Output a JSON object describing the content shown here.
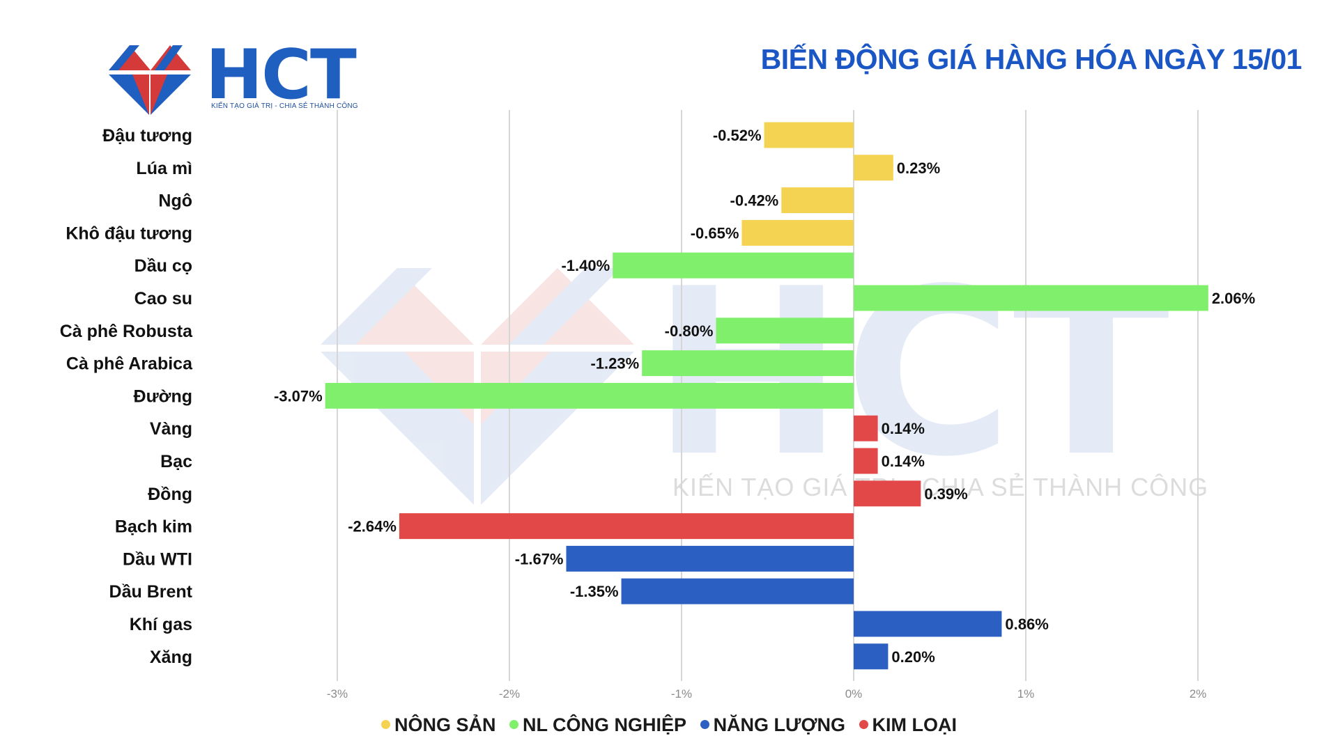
{
  "header": {
    "logo_text": "HCT",
    "logo_tagline": "KIẾN TẠO GIÁ TRỊ - CHIA SẺ THÀNH CÔNG",
    "title": "BIẾN ĐỘNG GIÁ HÀNG HÓA NGÀY 15/01"
  },
  "watermark": {
    "text": "HCT",
    "tagline": "KIẾN TẠO GIÁ TRỊ - CHIA SẺ THÀNH CÔNG"
  },
  "legend": [
    {
      "name": "NÔNG SẢN",
      "color": "#f5d352"
    },
    {
      "name": "NL CÔNG NGHIỆP",
      "color": "#80f06c"
    },
    {
      "name": "NĂNG LƯỢNG",
      "color": "#2b60c2"
    },
    {
      "name": "KIM LOẠI",
      "color": "#e34848"
    }
  ],
  "chart_data": {
    "type": "bar",
    "orientation": "horizontal",
    "title": "BIẾN ĐỘNG GIÁ HÀNG HÓA NGÀY 15/01",
    "xlim": [
      -3,
      2
    ],
    "x_ticks": [
      -3,
      -2,
      -1,
      0,
      1,
      2
    ],
    "x_tick_labels": [
      "-3%",
      "-2%",
      "-1%",
      "0%",
      "1%",
      "2%"
    ],
    "grid": "vertical",
    "legend_position": "bottom",
    "categories": [
      "Đậu tương",
      "Lúa mì",
      "Ngô",
      "Khô đậu tương",
      "Dầu cọ",
      "Cao su",
      "Cà phê Robusta",
      "Cà phê Arabica",
      "Đường",
      "Vàng",
      "Bạc",
      "Đồng",
      "Bạch kim",
      "Dầu WTI",
      "Dầu Brent",
      "Khí gas",
      "Xăng"
    ],
    "values": [
      -0.52,
      0.23,
      -0.42,
      -0.65,
      -1.4,
      2.06,
      -0.8,
      -1.23,
      -3.07,
      0.14,
      0.14,
      0.39,
      -2.64,
      -1.67,
      -1.35,
      0.86,
      0.2
    ],
    "value_labels": [
      "-0.52%",
      "0.23%",
      "-0.42%",
      "-0.65%",
      "-1.40%",
      "2.06%",
      "-0.80%",
      "-1.23%",
      "-3.07%",
      "0.14%",
      "0.14%",
      "0.39%",
      "-2.64%",
      "-1.67%",
      "-1.35%",
      "0.86%",
      "0.20%"
    ],
    "groups": [
      "NÔNG SẢN",
      "NÔNG SẢN",
      "NÔNG SẢN",
      "NÔNG SẢN",
      "NL CÔNG NGHIỆP",
      "NL CÔNG NGHIỆP",
      "NL CÔNG NGHIỆP",
      "NL CÔNG NGHIỆP",
      "NL CÔNG NGHIỆP",
      "KIM LOẠI",
      "KIM LOẠI",
      "KIM LOẠI",
      "KIM LOẠI",
      "NĂNG LƯỢNG",
      "NĂNG LƯỢNG",
      "NĂNG LƯỢNG",
      "NĂNG LƯỢNG"
    ]
  }
}
